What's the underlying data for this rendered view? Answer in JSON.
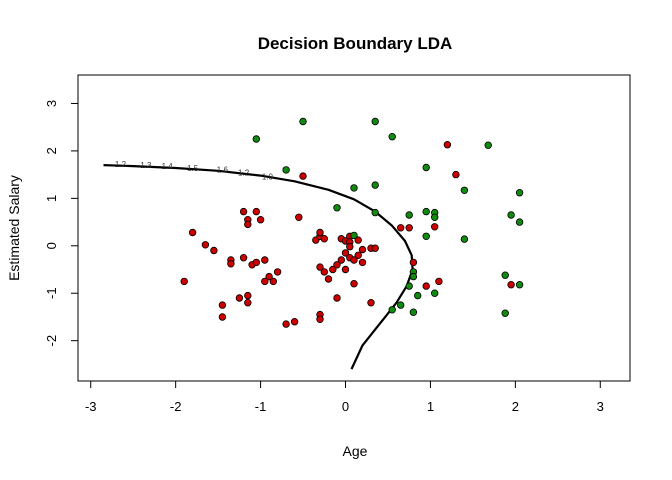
{
  "chart_data": {
    "type": "scatter",
    "title": "Decision Boundary LDA",
    "xlabel": "Age",
    "ylabel": "Estimated Salary",
    "xlim": [
      -3.15,
      3.35
    ],
    "ylim": [
      -2.85,
      3.6
    ],
    "grid": false,
    "x_ticks": [
      "-3",
      "-2",
      "-1",
      "0",
      "1",
      "2",
      "3"
    ],
    "y_ticks": [
      "-2",
      "-1",
      "0",
      "1",
      "2",
      "3"
    ],
    "colors": {
      "class_0": "#cc0000",
      "class_1": "#108a10",
      "boundary": "#000000"
    },
    "series": [
      {
        "points": [
          [
            1.2,
            2.13
          ],
          [
            -0.5,
            1.47
          ],
          [
            1.3,
            1.5
          ],
          [
            1.05,
            0.4
          ],
          [
            0.75,
            0.38
          ],
          [
            0.65,
            0.38
          ],
          [
            -1.2,
            0.72
          ],
          [
            -1.05,
            0.72
          ],
          [
            -1.0,
            0.55
          ],
          [
            -1.15,
            0.55
          ],
          [
            -1.15,
            0.45
          ],
          [
            -0.55,
            0.6
          ],
          [
            -1.8,
            0.28
          ],
          [
            -1.65,
            0.02
          ],
          [
            -1.55,
            -0.1
          ],
          [
            -1.35,
            -0.3
          ],
          [
            -1.35,
            -0.38
          ],
          [
            -1.2,
            -0.25
          ],
          [
            -1.1,
            -0.4
          ],
          [
            -1.05,
            -0.35
          ],
          [
            -0.95,
            -0.3
          ],
          [
            -0.9,
            -0.65
          ],
          [
            -0.85,
            -0.75
          ],
          [
            -0.95,
            -0.75
          ],
          [
            -0.8,
            -0.55
          ],
          [
            -0.35,
            0.12
          ],
          [
            -0.3,
            0.2
          ],
          [
            -0.3,
            0.28
          ],
          [
            -0.25,
            0.15
          ],
          [
            -0.05,
            0.15
          ],
          [
            -0.1,
            -0.4
          ],
          [
            -0.15,
            -0.5
          ],
          [
            -0.25,
            -0.55
          ],
          [
            -0.3,
            -0.45
          ],
          [
            -0.2,
            -0.7
          ],
          [
            0.0,
            0.1
          ],
          [
            0.05,
            0.2
          ],
          [
            0.05,
            0.08
          ],
          [
            0.15,
            0.12
          ],
          [
            0.05,
            -0.02
          ],
          [
            0.0,
            -0.15
          ],
          [
            0.05,
            -0.25
          ],
          [
            0.1,
            -0.3
          ],
          [
            0.15,
            -0.2
          ],
          [
            0.2,
            -0.35
          ],
          [
            0.2,
            -0.08
          ],
          [
            0.3,
            -0.05
          ],
          [
            0.0,
            -0.5
          ],
          [
            -0.05,
            -0.3
          ],
          [
            0.35,
            -0.05
          ],
          [
            -1.9,
            -0.75
          ],
          [
            -1.45,
            -1.25
          ],
          [
            -1.45,
            -1.5
          ],
          [
            -1.25,
            -1.1
          ],
          [
            -1.15,
            -1.05
          ],
          [
            -1.15,
            -1.2
          ],
          [
            -0.7,
            -1.65
          ],
          [
            -0.6,
            -1.6
          ],
          [
            -0.3,
            -1.45
          ],
          [
            -0.3,
            -1.55
          ],
          [
            -0.1,
            -1.1
          ],
          [
            0.1,
            -0.8
          ],
          [
            0.3,
            -1.2
          ],
          [
            0.95,
            -0.85
          ],
          [
            1.1,
            -0.75
          ],
          [
            1.95,
            -0.82
          ],
          [
            0.8,
            -0.35
          ]
        ]
      },
      {
        "points": [
          [
            -1.05,
            2.25
          ],
          [
            -0.5,
            2.62
          ],
          [
            0.35,
            2.62
          ],
          [
            0.55,
            2.3
          ],
          [
            1.68,
            2.12
          ],
          [
            -0.7,
            1.6
          ],
          [
            0.1,
            1.22
          ],
          [
            0.35,
            1.28
          ],
          [
            0.95,
            1.65
          ],
          [
            1.4,
            1.17
          ],
          [
            2.05,
            1.12
          ],
          [
            -0.1,
            0.8
          ],
          [
            0.35,
            0.7
          ],
          [
            0.75,
            0.65
          ],
          [
            0.95,
            0.72
          ],
          [
            1.05,
            0.7
          ],
          [
            1.05,
            0.6
          ],
          [
            1.95,
            0.65
          ],
          [
            2.05,
            0.5
          ],
          [
            0.1,
            0.22
          ],
          [
            0.95,
            0.2
          ],
          [
            1.4,
            0.14
          ],
          [
            0.8,
            -0.55
          ],
          [
            0.8,
            -0.65
          ],
          [
            0.75,
            -0.85
          ],
          [
            1.05,
            -1.0
          ],
          [
            0.85,
            -1.05
          ],
          [
            0.65,
            -1.25
          ],
          [
            0.55,
            -1.35
          ],
          [
            0.8,
            -1.4
          ],
          [
            1.88,
            -0.62
          ],
          [
            2.05,
            -0.82
          ],
          [
            1.88,
            -1.42
          ]
        ]
      }
    ],
    "boundary": [
      [
        -2.85,
        1.7
      ],
      [
        -2.5,
        1.68
      ],
      [
        -2.0,
        1.64
      ],
      [
        -1.5,
        1.58
      ],
      [
        -1.0,
        1.48
      ],
      [
        -0.6,
        1.36
      ],
      [
        -0.2,
        1.18
      ],
      [
        0.1,
        0.98
      ],
      [
        0.35,
        0.72
      ],
      [
        0.55,
        0.42
      ],
      [
        0.7,
        0.1
      ],
      [
        0.78,
        -0.2
      ],
      [
        0.79,
        -0.5
      ],
      [
        0.72,
        -0.85
      ],
      [
        0.6,
        -1.2
      ],
      [
        0.4,
        -1.65
      ],
      [
        0.2,
        -2.1
      ],
      [
        0.07,
        -2.6
      ]
    ],
    "contour_labels": [
      {
        "text": "1.2",
        "x": -2.65,
        "y": 1.66
      },
      {
        "text": "1.3",
        "x": -2.35,
        "y": 1.64
      },
      {
        "text": "1.4",
        "x": -2.1,
        "y": 1.62
      },
      {
        "text": "1.5",
        "x": -1.8,
        "y": 1.58
      },
      {
        "text": "1.6",
        "x": -1.45,
        "y": 1.54
      },
      {
        "text": "1.2",
        "x": -1.2,
        "y": 1.48
      },
      {
        "text": "1.0",
        "x": -0.92,
        "y": 1.4
      }
    ]
  }
}
